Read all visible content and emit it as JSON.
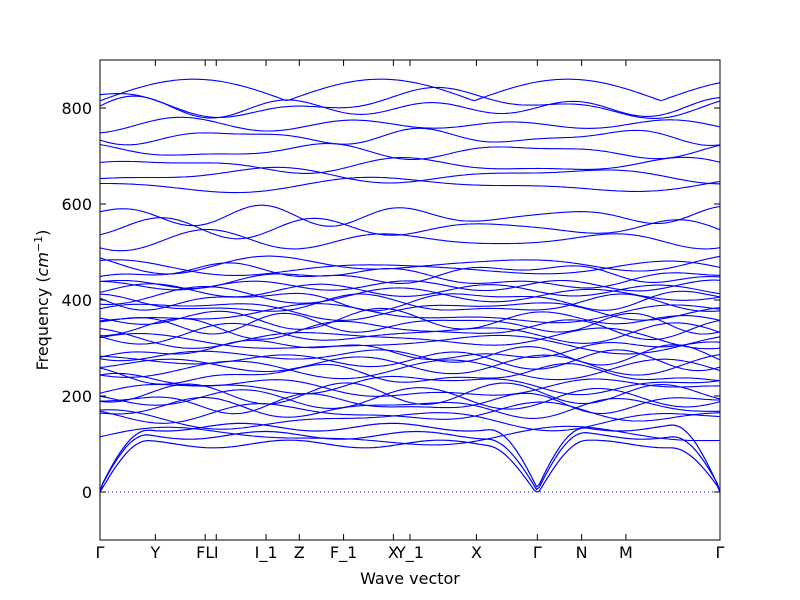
{
  "chart_data": {
    "type": "line",
    "title": "",
    "xlabel": "Wave vector",
    "ylabel_text": "Frequency (",
    "ylabel_unit_base": "cm",
    "ylabel_unit_exp": "−1",
    "ylabel_close": ")",
    "ylim": [
      -100,
      900
    ],
    "yticks": [
      0,
      200,
      400,
      600,
      800
    ],
    "line_color": "#0000ff",
    "zero_line_color": "#0000ff",
    "high_symmetry_points": [
      {
        "label": "Γ",
        "x": 0.0
      },
      {
        "label": "Y",
        "x": 0.1
      },
      {
        "label": "FL",
        "x": 0.19
      },
      {
        "label": "I",
        "x": 0.21
      },
      {
        "label": "I_1",
        "x": 0.3
      },
      {
        "label": "Z",
        "x": 0.36
      },
      {
        "label": "F_1",
        "x": 0.44
      },
      {
        "label": "X",
        "x": 0.53
      },
      {
        "label": "Y_1",
        "x": 0.56
      },
      {
        "label": "X",
        "x": 0.68
      },
      {
        "label": "Γ",
        "x": 0.79
      },
      {
        "label": "N",
        "x": 0.87
      },
      {
        "label": "M",
        "x": 0.95
      },
      {
        "label": "Γ",
        "x": 1.12
      }
    ],
    "band_levels": [
      115,
      150,
      165,
      175,
      185,
      195,
      205,
      215,
      225,
      245,
      255,
      265,
      275,
      285,
      295,
      310,
      320,
      330,
      340,
      350,
      360,
      370,
      380,
      390,
      400,
      410,
      420,
      430,
      445,
      455,
      465,
      475,
      525,
      550,
      575,
      640,
      660,
      680,
      710,
      740,
      765,
      800,
      810
    ]
  }
}
